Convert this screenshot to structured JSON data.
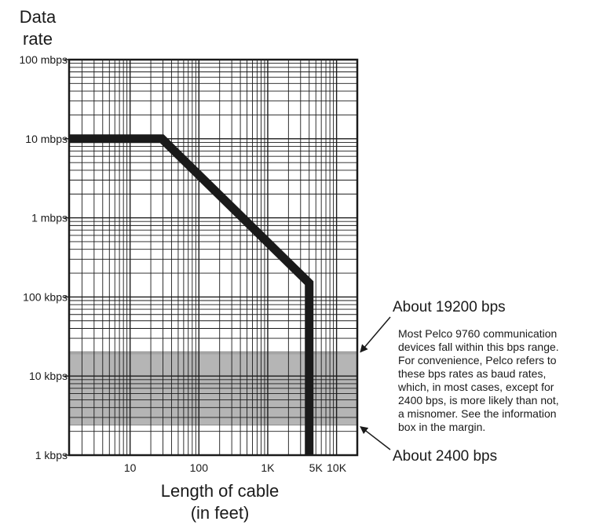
{
  "chart_data": {
    "type": "line",
    "title": "",
    "ylabel": {
      "line1": "Data",
      "line2": "rate"
    },
    "xlabel": {
      "line1": "Length of cable",
      "line2": "(in feet)"
    },
    "x_scale": "log",
    "y_scale": "log",
    "xlim": [
      1.3,
      20000
    ],
    "ylim": [
      1000,
      100000000
    ],
    "grid": true,
    "x_ticks": [
      {
        "value": 10,
        "label": "10"
      },
      {
        "value": 100,
        "label": "100"
      },
      {
        "value": 1000,
        "label": "1K"
      },
      {
        "value": 5000,
        "label": "5K"
      },
      {
        "value": 10000,
        "label": "10K"
      }
    ],
    "y_ticks": [
      {
        "value": 1000,
        "label": "1 kbps"
      },
      {
        "value": 10000,
        "label": "10 kbps"
      },
      {
        "value": 100000,
        "label": "100 kbps"
      },
      {
        "value": 1000000,
        "label": "1 mbps"
      },
      {
        "value": 10000000,
        "label": "10 mbps"
      },
      {
        "value": 100000000,
        "label": "100 mbps"
      }
    ],
    "series": [
      {
        "x": [
          1.3,
          29,
          4000,
          4000
        ],
        "y": [
          10000000,
          10000000,
          150000,
          1000
        ]
      }
    ],
    "band": {
      "y_low": 2400,
      "y_high": 19200,
      "color": "#b5b5b5"
    },
    "colors": {
      "line": "#1a1a1a",
      "grid": "#1a1a1a",
      "band": "#b5b5b5"
    },
    "annotations": {
      "upper": {
        "title": "About 19200 bps",
        "y": 19200
      },
      "lower": {
        "title": "About 2400 bps",
        "y": 2400
      },
      "body": [
        "Most Pelco 9760 communication",
        "devices fall within this bps range.",
        "For convenience, Pelco refers to",
        "these bps rates as baud rates,",
        "which, in most cases, except for",
        "2400 bps, is more likely than not,",
        "a misnomer. See the information",
        "box in the margin."
      ]
    }
  }
}
